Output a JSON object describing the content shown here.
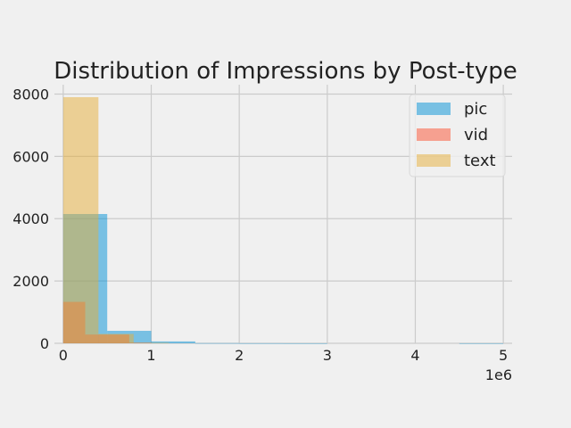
{
  "chart_data": {
    "type": "histogram",
    "title": "Distribution of Impressions by Post-type",
    "xlabel": "",
    "ylabel": "",
    "x_offset_label": "1e6",
    "xlim": [
      -100000,
      5100000
    ],
    "ylim": [
      0,
      8300
    ],
    "x_ticks": [
      0,
      1000000,
      2000000,
      3000000,
      4000000,
      5000000
    ],
    "x_tick_labels": [
      "0",
      "1",
      "2",
      "3",
      "4",
      "5"
    ],
    "y_ticks": [
      0,
      2000,
      4000,
      6000,
      8000
    ],
    "y_tick_labels": [
      "0",
      "2000",
      "4000",
      "6000",
      "8000"
    ],
    "grid": true,
    "legend_position": "top-right",
    "series": [
      {
        "name": "pic",
        "color": "#008fd5",
        "opacity": 0.5,
        "bins": [
          {
            "x0": 0,
            "x1": 500000,
            "count": 4150
          },
          {
            "x0": 500000,
            "x1": 1000000,
            "count": 400
          },
          {
            "x0": 1000000,
            "x1": 1500000,
            "count": 60
          },
          {
            "x0": 1500000,
            "x1": 2000000,
            "count": 5
          },
          {
            "x0": 2000000,
            "x1": 2500000,
            "count": 2
          },
          {
            "x0": 2500000,
            "x1": 3000000,
            "count": 1
          },
          {
            "x0": 3000000,
            "x1": 3500000,
            "count": 0
          },
          {
            "x0": 3500000,
            "x1": 4000000,
            "count": 0
          },
          {
            "x0": 4000000,
            "x1": 4500000,
            "count": 0
          },
          {
            "x0": 4500000,
            "x1": 5000000,
            "count": 1
          }
        ]
      },
      {
        "name": "vid",
        "color": "#fc4f30",
        "opacity": 0.5,
        "bins": [
          {
            "x0": 0,
            "x1": 250000,
            "count": 1330
          },
          {
            "x0": 250000,
            "x1": 500000,
            "count": 280
          },
          {
            "x0": 500000,
            "x1": 750000,
            "count": 280
          },
          {
            "x0": 750000,
            "x1": 1000000,
            "count": 20
          }
        ]
      },
      {
        "name": "text",
        "color": "#e5ae38",
        "opacity": 0.5,
        "bins": [
          {
            "x0": 0,
            "x1": 400000,
            "count": 7900
          },
          {
            "x0": 400000,
            "x1": 800000,
            "count": 300
          },
          {
            "x0": 800000,
            "x1": 1200000,
            "count": 15
          }
        ]
      }
    ]
  }
}
